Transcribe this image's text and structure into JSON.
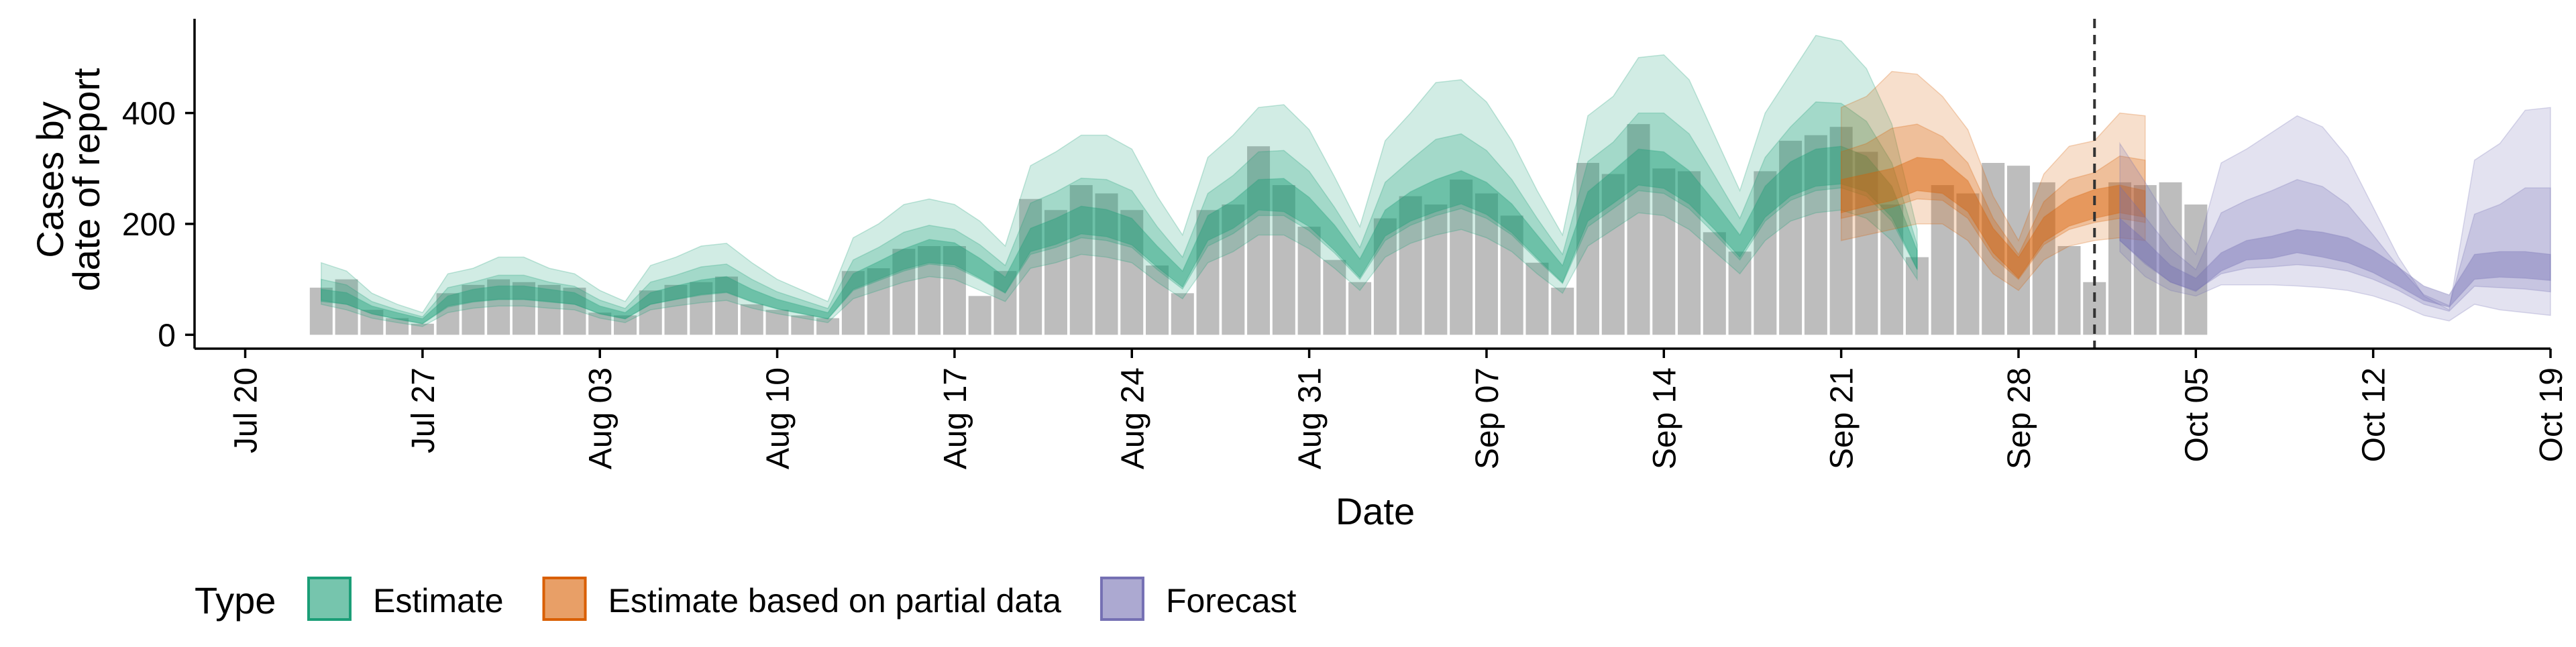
{
  "chart_data": {
    "type": "bar",
    "title": "",
    "xlabel": "Date",
    "ylabel_lines": [
      "Cases by",
      "date of report"
    ],
    "ylim": [
      -25,
      570
    ],
    "xlim": [
      "2020-07-18",
      "2020-10-19"
    ],
    "y_ticks": [
      0,
      200,
      400
    ],
    "x_ticks": [
      {
        "date": "2020-07-20",
        "label": "Jul 20"
      },
      {
        "date": "2020-07-27",
        "label": "Jul 27"
      },
      {
        "date": "2020-08-03",
        "label": "Aug 03"
      },
      {
        "date": "2020-08-10",
        "label": "Aug 10"
      },
      {
        "date": "2020-08-17",
        "label": "Aug 17"
      },
      {
        "date": "2020-08-24",
        "label": "Aug 24"
      },
      {
        "date": "2020-08-31",
        "label": "Aug 31"
      },
      {
        "date": "2020-09-07",
        "label": "Sep 07"
      },
      {
        "date": "2020-09-14",
        "label": "Sep 14"
      },
      {
        "date": "2020-09-21",
        "label": "Sep 21"
      },
      {
        "date": "2020-09-28",
        "label": "Sep 28"
      },
      {
        "date": "2020-10-05",
        "label": "Oct 05"
      },
      {
        "date": "2020-10-12",
        "label": "Oct 12"
      },
      {
        "date": "2020-10-19",
        "label": "Oct 19"
      }
    ],
    "forecast_date": "2020-10-01",
    "bars": {
      "start_date": "2020-07-23",
      "values": [
        85,
        100,
        45,
        30,
        20,
        75,
        90,
        100,
        95,
        90,
        85,
        40,
        35,
        80,
        90,
        95,
        105,
        55,
        45,
        35,
        30,
        115,
        120,
        155,
        160,
        160,
        70,
        115,
        245,
        225,
        270,
        255,
        225,
        125,
        75,
        225,
        235,
        340,
        270,
        195,
        135,
        95,
        210,
        250,
        235,
        280,
        255,
        215,
        130,
        85,
        310,
        290,
        380,
        300,
        295,
        185,
        150,
        295,
        350,
        360,
        375,
        330,
        235,
        140,
        270,
        255,
        310,
        305,
        275,
        160,
        95,
        275,
        270,
        275,
        235
      ]
    },
    "series": [
      {
        "name": "Estimate",
        "color": "#1B9E77",
        "start_date": "2020-07-23",
        "median": [
          70,
          65,
          45,
          35,
          25,
          60,
          70,
          75,
          75,
          70,
          65,
          45,
          35,
          65,
          75,
          85,
          90,
          70,
          55,
          45,
          35,
          95,
          115,
          135,
          150,
          145,
          120,
          90,
          170,
          185,
          205,
          200,
          185,
          140,
          100,
          190,
          215,
          250,
          250,
          220,
          175,
          120,
          200,
          230,
          250,
          265,
          245,
          210,
          160,
          110,
          230,
          265,
          300,
          295,
          265,
          215,
          160,
          240,
          280,
          300,
          305,
          290,
          240,
          135
        ],
        "q25": [
          60,
          55,
          38,
          28,
          20,
          52,
          60,
          64,
          64,
          60,
          55,
          38,
          29,
          55,
          64,
          73,
          77,
          60,
          47,
          38,
          29,
          82,
          100,
          118,
          130,
          126,
          102,
          76,
          150,
          163,
          182,
          177,
          162,
          122,
          86,
          170,
          192,
          225,
          222,
          195,
          152,
          103,
          178,
          205,
          222,
          236,
          217,
          184,
          138,
          94,
          205,
          237,
          270,
          264,
          236,
          190,
          140,
          212,
          250,
          268,
          272,
          258,
          212,
          118
        ],
        "q75": [
          82,
          76,
          52,
          40,
          29,
          70,
          82,
          88,
          88,
          82,
          76,
          52,
          40,
          76,
          88,
          99,
          105,
          82,
          64,
          52,
          40,
          110,
          132,
          155,
          172,
          166,
          138,
          104,
          192,
          210,
          232,
          226,
          210,
          160,
          115,
          215,
          242,
          280,
          282,
          248,
          198,
          137,
          225,
          258,
          280,
          296,
          275,
          236,
          180,
          125,
          258,
          296,
          335,
          330,
          296,
          240,
          180,
          268,
          312,
          335,
          340,
          322,
          268,
          152
        ],
        "lower": [
          55,
          45,
          30,
          22,
          15,
          40,
          48,
          52,
          52,
          48,
          45,
          30,
          22,
          45,
          52,
          58,
          62,
          48,
          38,
          30,
          22,
          65,
          80,
          95,
          105,
          100,
          80,
          60,
          120,
          130,
          145,
          140,
          130,
          95,
          65,
          130,
          150,
          180,
          180,
          155,
          120,
          80,
          140,
          165,
          180,
          190,
          175,
          150,
          110,
          75,
          160,
          190,
          220,
          215,
          190,
          150,
          110,
          170,
          205,
          220,
          225,
          210,
          170,
          100
        ],
        "upper": [
          130,
          115,
          75,
          55,
          40,
          110,
          120,
          140,
          140,
          120,
          110,
          80,
          60,
          125,
          140,
          160,
          165,
          130,
          100,
          80,
          60,
          175,
          200,
          235,
          245,
          235,
          205,
          160,
          305,
          330,
          360,
          360,
          335,
          250,
          180,
          320,
          360,
          410,
          415,
          370,
          285,
          195,
          350,
          400,
          455,
          460,
          420,
          350,
          260,
          180,
          395,
          430,
          500,
          505,
          460,
          360,
          260,
          400,
          470,
          540,
          530,
          480,
          380,
          190
        ]
      },
      {
        "name": "Estimate based on partial data",
        "color": "#D95F02",
        "start_date": "2020-09-21",
        "median": [
          250,
          260,
          270,
          290,
          285,
          250,
          170,
          120,
          190,
          220,
          235,
          245,
          235
        ],
        "q25": [
          220,
          232,
          242,
          260,
          255,
          222,
          148,
          102,
          168,
          196,
          210,
          220,
          212
        ],
        "q75": [
          280,
          290,
          300,
          320,
          316,
          278,
          192,
          140,
          212,
          245,
          262,
          270,
          260
        ],
        "lower": [
          170,
          180,
          190,
          200,
          200,
          170,
          110,
          80,
          135,
          160,
          170,
          175,
          170
        ],
        "upper": [
          410,
          430,
          475,
          470,
          430,
          370,
          250,
          170,
          290,
          340,
          350,
          400,
          395
        ]
      },
      {
        "name": "Forecast",
        "color": "#7570B3",
        "start_date": "2020-10-02",
        "median": [
          190,
          150,
          110,
          90,
          130,
          150,
          155,
          165,
          160,
          150,
          130,
          105,
          75,
          60,
          120,
          125,
          125,
          120
        ],
        "q25": [
          170,
          130,
          95,
          78,
          115,
          135,
          138,
          148,
          140,
          130,
          112,
          88,
          62,
          50,
          100,
          104,
          102,
          98
        ],
        "q75": [
          210,
          170,
          125,
          102,
          148,
          170,
          178,
          190,
          185,
          175,
          152,
          122,
          88,
          72,
          145,
          150,
          150,
          145
        ],
        "lower": [
          150,
          105,
          80,
          70,
          90,
          90,
          90,
          88,
          85,
          80,
          70,
          55,
          35,
          25,
          55,
          45,
          40,
          35
        ],
        "upper": [
          345,
          275,
          200,
          145,
          310,
          335,
          365,
          395,
          375,
          320,
          230,
          140,
          70,
          45,
          315,
          345,
          405,
          410
        ]
      }
    ],
    "legend": {
      "title": "Type",
      "position": "bottom",
      "items": [
        "Estimate",
        "Estimate based on partial data",
        "Forecast"
      ]
    },
    "grid": false
  },
  "colors": {
    "bars": "#BDBDBD",
    "axis": "#000000",
    "forecast_line": "#333333"
  }
}
